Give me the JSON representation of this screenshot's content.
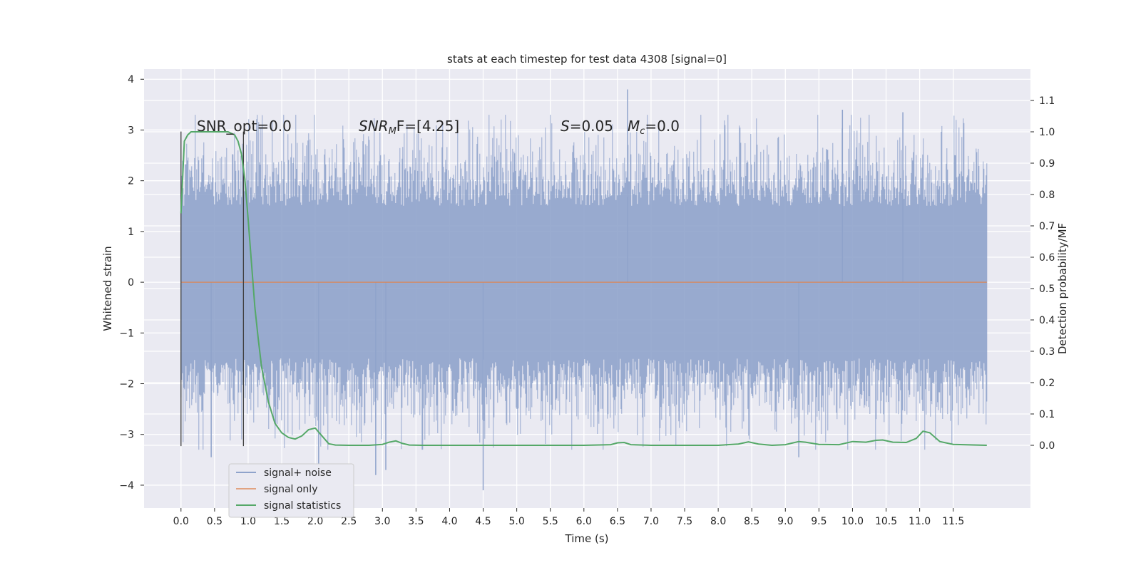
{
  "chart_data": {
    "type": "line",
    "title": "stats at each timestep for test data 4308 [signal=0]",
    "xlabel": "Time (s)",
    "ylabel": "Whitened strain",
    "ylabel_right": "Detection probability/MF",
    "xlim": [
      -0.55,
      12.65
    ],
    "ylim": [
      -4.45,
      4.2
    ],
    "ylim_right": [
      -0.2,
      1.2
    ],
    "x_ticks": [
      "0.0",
      "0.5",
      "1.0",
      "1.5",
      "2.0",
      "2.5",
      "3.0",
      "3.5",
      "4.0",
      "4.5",
      "5.0",
      "5.5",
      "6.0",
      "6.5",
      "7.0",
      "7.5",
      "8.0",
      "8.5",
      "9.0",
      "9.5",
      "10.0",
      "10.5",
      "11.0",
      "11.5"
    ],
    "y_ticks": [
      "4",
      "3",
      "2",
      "1",
      "0",
      "−1",
      "−2",
      "−3",
      "−4"
    ],
    "y_ticks_right": [
      "1.1",
      "1.0",
      "0.9",
      "0.8",
      "0.7",
      "0.6",
      "0.5",
      "0.4",
      "0.3",
      "0.2",
      "0.1",
      "0.0"
    ],
    "grid": true,
    "legend_position": "bottom-left",
    "annotations": {
      "snr_opt": "SNR_opt=0.0",
      "snr_mf": "SNR",
      "snr_mf_sub": "M",
      "snr_mf_rest": "F=[4.25]",
      "s_label": "S",
      "s_value": "=0.05",
      "mc_label": "M",
      "mc_sub": "c",
      "mc_value": "=0.0"
    },
    "vertical_markers": [
      0.0,
      0.93
    ],
    "series": [
      {
        "name": "signal+ noise",
        "color": "#8fa3cb",
        "axis": "left",
        "x_range": [
          0.0,
          12.0
        ],
        "typical_range": [
          -1.9,
          1.9
        ],
        "extremes": [
          {
            "x": 0.45,
            "y": -3.45
          },
          {
            "x": 2.05,
            "y": -3.7
          },
          {
            "x": 2.9,
            "y": -3.8
          },
          {
            "x": 3.05,
            "y": -3.7
          },
          {
            "x": 4.5,
            "y": -4.1
          },
          {
            "x": 6.65,
            "y": 3.8
          },
          {
            "x": 9.2,
            "y": -3.45
          },
          {
            "x": 9.85,
            "y": 3.4
          },
          {
            "x": 10.75,
            "y": 3.35
          }
        ]
      },
      {
        "name": "signal only",
        "color": "#dd8452",
        "axis": "left",
        "x": [
          0.0,
          12.0
        ],
        "y": [
          0.0,
          0.0
        ]
      },
      {
        "name": "signal statistics",
        "color": "#55a868",
        "axis": "right",
        "x": [
          0.0,
          0.05,
          0.1,
          0.15,
          0.2,
          0.3,
          0.4,
          0.5,
          0.6,
          0.7,
          0.8,
          0.85,
          0.9,
          0.95,
          1.0,
          1.05,
          1.1,
          1.15,
          1.2,
          1.3,
          1.4,
          1.5,
          1.6,
          1.7,
          1.8,
          1.9,
          2.0,
          2.1,
          2.2,
          2.3,
          2.5,
          2.8,
          3.0,
          3.1,
          3.2,
          3.3,
          3.4,
          3.6,
          4.0,
          4.5,
          5.0,
          5.5,
          6.0,
          6.4,
          6.5,
          6.6,
          6.7,
          7.0,
          7.5,
          8.0,
          8.3,
          8.45,
          8.6,
          8.8,
          9.0,
          9.1,
          9.2,
          9.3,
          9.5,
          9.8,
          10.0,
          10.2,
          10.35,
          10.45,
          10.6,
          10.8,
          10.95,
          11.05,
          11.15,
          11.3,
          11.5,
          12.0
        ],
        "y": [
          0.74,
          0.97,
          0.99,
          1.0,
          1.0,
          1.0,
          1.0,
          1.0,
          1.0,
          1.0,
          0.99,
          0.97,
          0.93,
          0.85,
          0.72,
          0.58,
          0.44,
          0.34,
          0.25,
          0.14,
          0.07,
          0.04,
          0.025,
          0.02,
          0.03,
          0.05,
          0.055,
          0.03,
          0.005,
          0.001,
          0.0,
          0.0,
          0.003,
          0.01,
          0.014,
          0.006,
          0.001,
          0.0,
          0.0,
          0.0,
          0.0,
          0.0,
          0.0,
          0.002,
          0.008,
          0.009,
          0.002,
          0.0,
          0.0,
          0.0,
          0.004,
          0.011,
          0.004,
          0.0,
          0.002,
          0.007,
          0.012,
          0.01,
          0.003,
          0.002,
          0.012,
          0.01,
          0.016,
          0.017,
          0.01,
          0.009,
          0.022,
          0.045,
          0.04,
          0.012,
          0.003,
          0.0
        ]
      }
    ]
  }
}
